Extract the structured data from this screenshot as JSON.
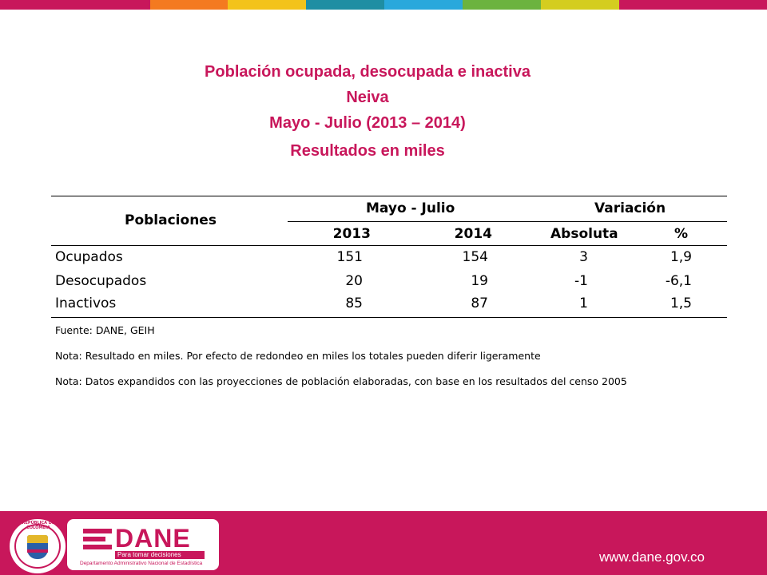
{
  "colors": {
    "accent": "#c8175b",
    "top_bar": [
      "#c8175b",
      "#f47a20",
      "#f3c31a",
      "#1f8ea3",
      "#29a8dc",
      "#6cb33f",
      "#d4cd1f",
      "#c8175b"
    ]
  },
  "title": {
    "line1": "Población ocupada, desocupada e inactiva",
    "line2": "Neiva",
    "line3": "Mayo - Julio (2013 – 2014)",
    "line4": "Resultados en miles"
  },
  "table": {
    "col_poblaciones": "Poblaciones",
    "group_period": "Mayo - Julio",
    "group_variation": "Variación",
    "year1": "2013",
    "year2": "2014",
    "absoluta": "Absoluta",
    "pct": "%",
    "rows": [
      {
        "label": "Ocupados",
        "v2013": "151",
        "v2014": "154",
        "abs": "3",
        "pct": "1,9"
      },
      {
        "label": "Desocupados",
        "v2013": "20",
        "v2014": "19",
        "abs": "-1",
        "pct": "-6,1"
      },
      {
        "label": "Inactivos",
        "v2013": "85",
        "v2014": "87",
        "abs": "1",
        "pct": "1,5"
      }
    ]
  },
  "notes": {
    "source": "Fuente: DANE, GEIH",
    "note1": "Nota: Resultado en miles. Por efecto de redondeo en miles los totales pueden diferir ligeramente",
    "note2": "Nota: Datos expandidos con las proyecciones de población elaboradas, con base en los resultados del censo 2005"
  },
  "footer": {
    "seal_text": "REPÚBLICA DE COLOMBIA",
    "logo_word": "DANE",
    "logo_tagline": "Para tomar decisiones",
    "logo_subtitle": "Departamento Administrativo Nacional de Estadística",
    "url": "www.dane.gov.co"
  }
}
